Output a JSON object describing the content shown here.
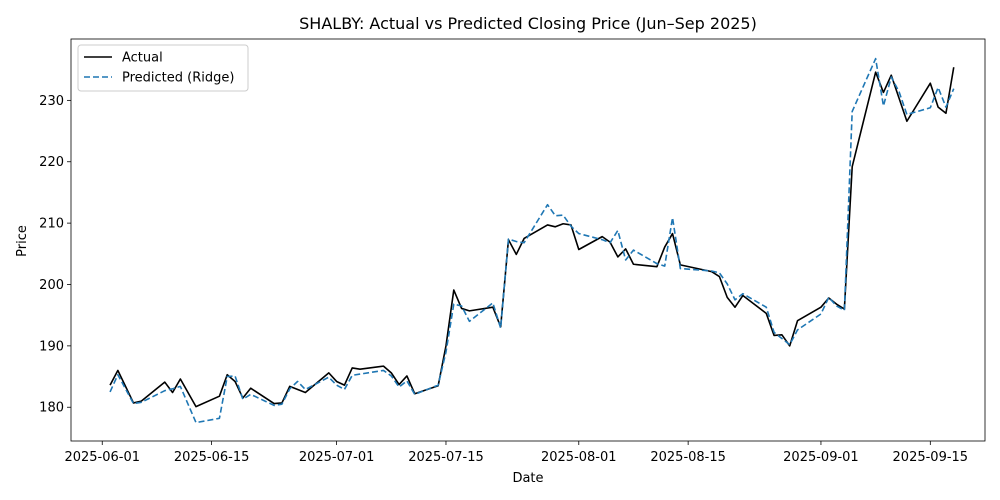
{
  "chart_data": {
    "type": "line",
    "title": "SHALBY: Actual vs Predicted Closing Price (Jun–Sep 2025)",
    "xlabel": "Date",
    "ylabel": "Price",
    "xlim": [
      "2025-05-28",
      "2025-09-22"
    ],
    "ylim": [
      174.5,
      240
    ],
    "x_ticks": [
      "2025-06-01",
      "2025-06-15",
      "2025-07-01",
      "2025-07-15",
      "2025-08-01",
      "2025-08-15",
      "2025-09-01",
      "2025-09-15"
    ],
    "y_ticks": [
      180,
      190,
      200,
      210,
      220,
      230
    ],
    "legend_position": "top-left",
    "grid": false,
    "series": [
      {
        "name": "Actual",
        "color": "#000000",
        "style": "solid",
        "points": [
          [
            "2025-06-02",
            183.6
          ],
          [
            "2025-06-03",
            186.0
          ],
          [
            "2025-06-05",
            180.7
          ],
          [
            "2025-06-06",
            181.0
          ],
          [
            "2025-06-09",
            184.1
          ],
          [
            "2025-06-10",
            182.4
          ],
          [
            "2025-06-11",
            184.6
          ],
          [
            "2025-06-13",
            180.1
          ],
          [
            "2025-06-16",
            181.8
          ],
          [
            "2025-06-17",
            185.3
          ],
          [
            "2025-06-18",
            184.2
          ],
          [
            "2025-06-19",
            181.5
          ],
          [
            "2025-06-20",
            183.1
          ],
          [
            "2025-06-23",
            180.6
          ],
          [
            "2025-06-24",
            180.7
          ],
          [
            "2025-06-25",
            183.4
          ],
          [
            "2025-06-27",
            182.4
          ],
          [
            "2025-06-30",
            185.6
          ],
          [
            "2025-07-01",
            184.2
          ],
          [
            "2025-07-02",
            183.6
          ],
          [
            "2025-07-03",
            186.4
          ],
          [
            "2025-07-04",
            186.2
          ],
          [
            "2025-07-07",
            186.7
          ],
          [
            "2025-07-08",
            185.6
          ],
          [
            "2025-07-09",
            183.7
          ],
          [
            "2025-07-10",
            185.1
          ],
          [
            "2025-07-11",
            182.2
          ],
          [
            "2025-07-14",
            183.5
          ],
          [
            "2025-07-15",
            190.0
          ],
          [
            "2025-07-16",
            199.1
          ],
          [
            "2025-07-17",
            196.1
          ],
          [
            "2025-07-18",
            195.7
          ],
          [
            "2025-07-21",
            196.3
          ],
          [
            "2025-07-22",
            193.1
          ],
          [
            "2025-07-23",
            207.3
          ],
          [
            "2025-07-24",
            204.9
          ],
          [
            "2025-07-25",
            207.5
          ],
          [
            "2025-07-28",
            209.7
          ],
          [
            "2025-07-29",
            209.4
          ],
          [
            "2025-07-30",
            209.9
          ],
          [
            "2025-07-31",
            209.7
          ],
          [
            "2025-08-01",
            205.7
          ],
          [
            "2025-08-04",
            207.8
          ],
          [
            "2025-08-05",
            206.9
          ],
          [
            "2025-08-06",
            204.5
          ],
          [
            "2025-08-07",
            205.8
          ],
          [
            "2025-08-08",
            203.3
          ],
          [
            "2025-08-11",
            202.9
          ],
          [
            "2025-08-12",
            206.1
          ],
          [
            "2025-08-13",
            208.3
          ],
          [
            "2025-08-14",
            203.2
          ],
          [
            "2025-08-18",
            202.1
          ],
          [
            "2025-08-19",
            201.3
          ],
          [
            "2025-08-20",
            197.9
          ],
          [
            "2025-08-21",
            196.3
          ],
          [
            "2025-08-22",
            198.2
          ],
          [
            "2025-08-25",
            195.3
          ],
          [
            "2025-08-26",
            191.7
          ],
          [
            "2025-08-27",
            191.8
          ],
          [
            "2025-08-28",
            190.0
          ],
          [
            "2025-08-29",
            194.1
          ],
          [
            "2025-09-01",
            196.3
          ],
          [
            "2025-09-02",
            197.8
          ],
          [
            "2025-09-03",
            196.8
          ],
          [
            "2025-09-04",
            196.0
          ],
          [
            "2025-09-05",
            219.2
          ],
          [
            "2025-09-08",
            234.6
          ],
          [
            "2025-09-09",
            231.3
          ],
          [
            "2025-09-10",
            234.1
          ],
          [
            "2025-09-12",
            226.6
          ],
          [
            "2025-09-15",
            232.8
          ],
          [
            "2025-09-16",
            228.9
          ],
          [
            "2025-09-17",
            227.9
          ],
          [
            "2025-09-18",
            235.4
          ]
        ]
      },
      {
        "name": "Predicted (Ridge)",
        "color": "#1f77b4",
        "style": "dashed",
        "points": [
          [
            "2025-06-02",
            182.5
          ],
          [
            "2025-06-03",
            185.3
          ],
          [
            "2025-06-05",
            180.6
          ],
          [
            "2025-06-06",
            180.8
          ],
          [
            "2025-06-09",
            182.7
          ],
          [
            "2025-06-10",
            183.0
          ],
          [
            "2025-06-11",
            183.4
          ],
          [
            "2025-06-13",
            177.5
          ],
          [
            "2025-06-16",
            178.2
          ],
          [
            "2025-06-17",
            185.0
          ],
          [
            "2025-06-18",
            185.1
          ],
          [
            "2025-06-19",
            181.3
          ],
          [
            "2025-06-20",
            182.1
          ],
          [
            "2025-06-23",
            180.3
          ],
          [
            "2025-06-24",
            180.5
          ],
          [
            "2025-06-25",
            183.0
          ],
          [
            "2025-06-26",
            184.2
          ],
          [
            "2025-06-27",
            182.9
          ],
          [
            "2025-06-30",
            184.9
          ],
          [
            "2025-07-01",
            183.6
          ],
          [
            "2025-07-02",
            182.9
          ],
          [
            "2025-07-03",
            185.2
          ],
          [
            "2025-07-04",
            185.4
          ],
          [
            "2025-07-07",
            186.0
          ],
          [
            "2025-07-08",
            185.1
          ],
          [
            "2025-07-09",
            183.3
          ],
          [
            "2025-07-10",
            184.3
          ],
          [
            "2025-07-11",
            182.1
          ],
          [
            "2025-07-14",
            183.6
          ],
          [
            "2025-07-15",
            189.0
          ],
          [
            "2025-07-16",
            196.8
          ],
          [
            "2025-07-17",
            196.5
          ],
          [
            "2025-07-18",
            194.0
          ],
          [
            "2025-07-21",
            197.0
          ],
          [
            "2025-07-22",
            192.9
          ],
          [
            "2025-07-23",
            207.4
          ],
          [
            "2025-07-24",
            207.0
          ],
          [
            "2025-07-25",
            206.8
          ],
          [
            "2025-07-28",
            213.0
          ],
          [
            "2025-07-29",
            211.2
          ],
          [
            "2025-07-30",
            211.3
          ],
          [
            "2025-07-31",
            209.5
          ],
          [
            "2025-08-01",
            208.3
          ],
          [
            "2025-08-04",
            207.3
          ],
          [
            "2025-08-05",
            206.8
          ],
          [
            "2025-08-06",
            208.8
          ],
          [
            "2025-08-07",
            204.0
          ],
          [
            "2025-08-08",
            205.6
          ],
          [
            "2025-08-11",
            203.4
          ],
          [
            "2025-08-12",
            203.0
          ],
          [
            "2025-08-13",
            210.9
          ],
          [
            "2025-08-14",
            202.6
          ],
          [
            "2025-08-18",
            202.2
          ],
          [
            "2025-08-19",
            201.9
          ],
          [
            "2025-08-20",
            200.1
          ],
          [
            "2025-08-21",
            197.5
          ],
          [
            "2025-08-22",
            198.5
          ],
          [
            "2025-08-25",
            196.3
          ],
          [
            "2025-08-26",
            192.2
          ],
          [
            "2025-08-27",
            191.2
          ],
          [
            "2025-08-28",
            190.2
          ],
          [
            "2025-08-29",
            192.6
          ],
          [
            "2025-09-01",
            195.2
          ],
          [
            "2025-09-02",
            197.9
          ],
          [
            "2025-09-03",
            196.5
          ],
          [
            "2025-09-04",
            195.8
          ],
          [
            "2025-09-05",
            228.2
          ],
          [
            "2025-09-08",
            236.8
          ],
          [
            "2025-09-09",
            229.1
          ],
          [
            "2025-09-10",
            233.8
          ],
          [
            "2025-09-11",
            231.4
          ],
          [
            "2025-09-12",
            227.7
          ],
          [
            "2025-09-15",
            228.8
          ],
          [
            "2025-09-16",
            232.1
          ],
          [
            "2025-09-17",
            228.9
          ],
          [
            "2025-09-18",
            231.9
          ]
        ]
      }
    ]
  }
}
